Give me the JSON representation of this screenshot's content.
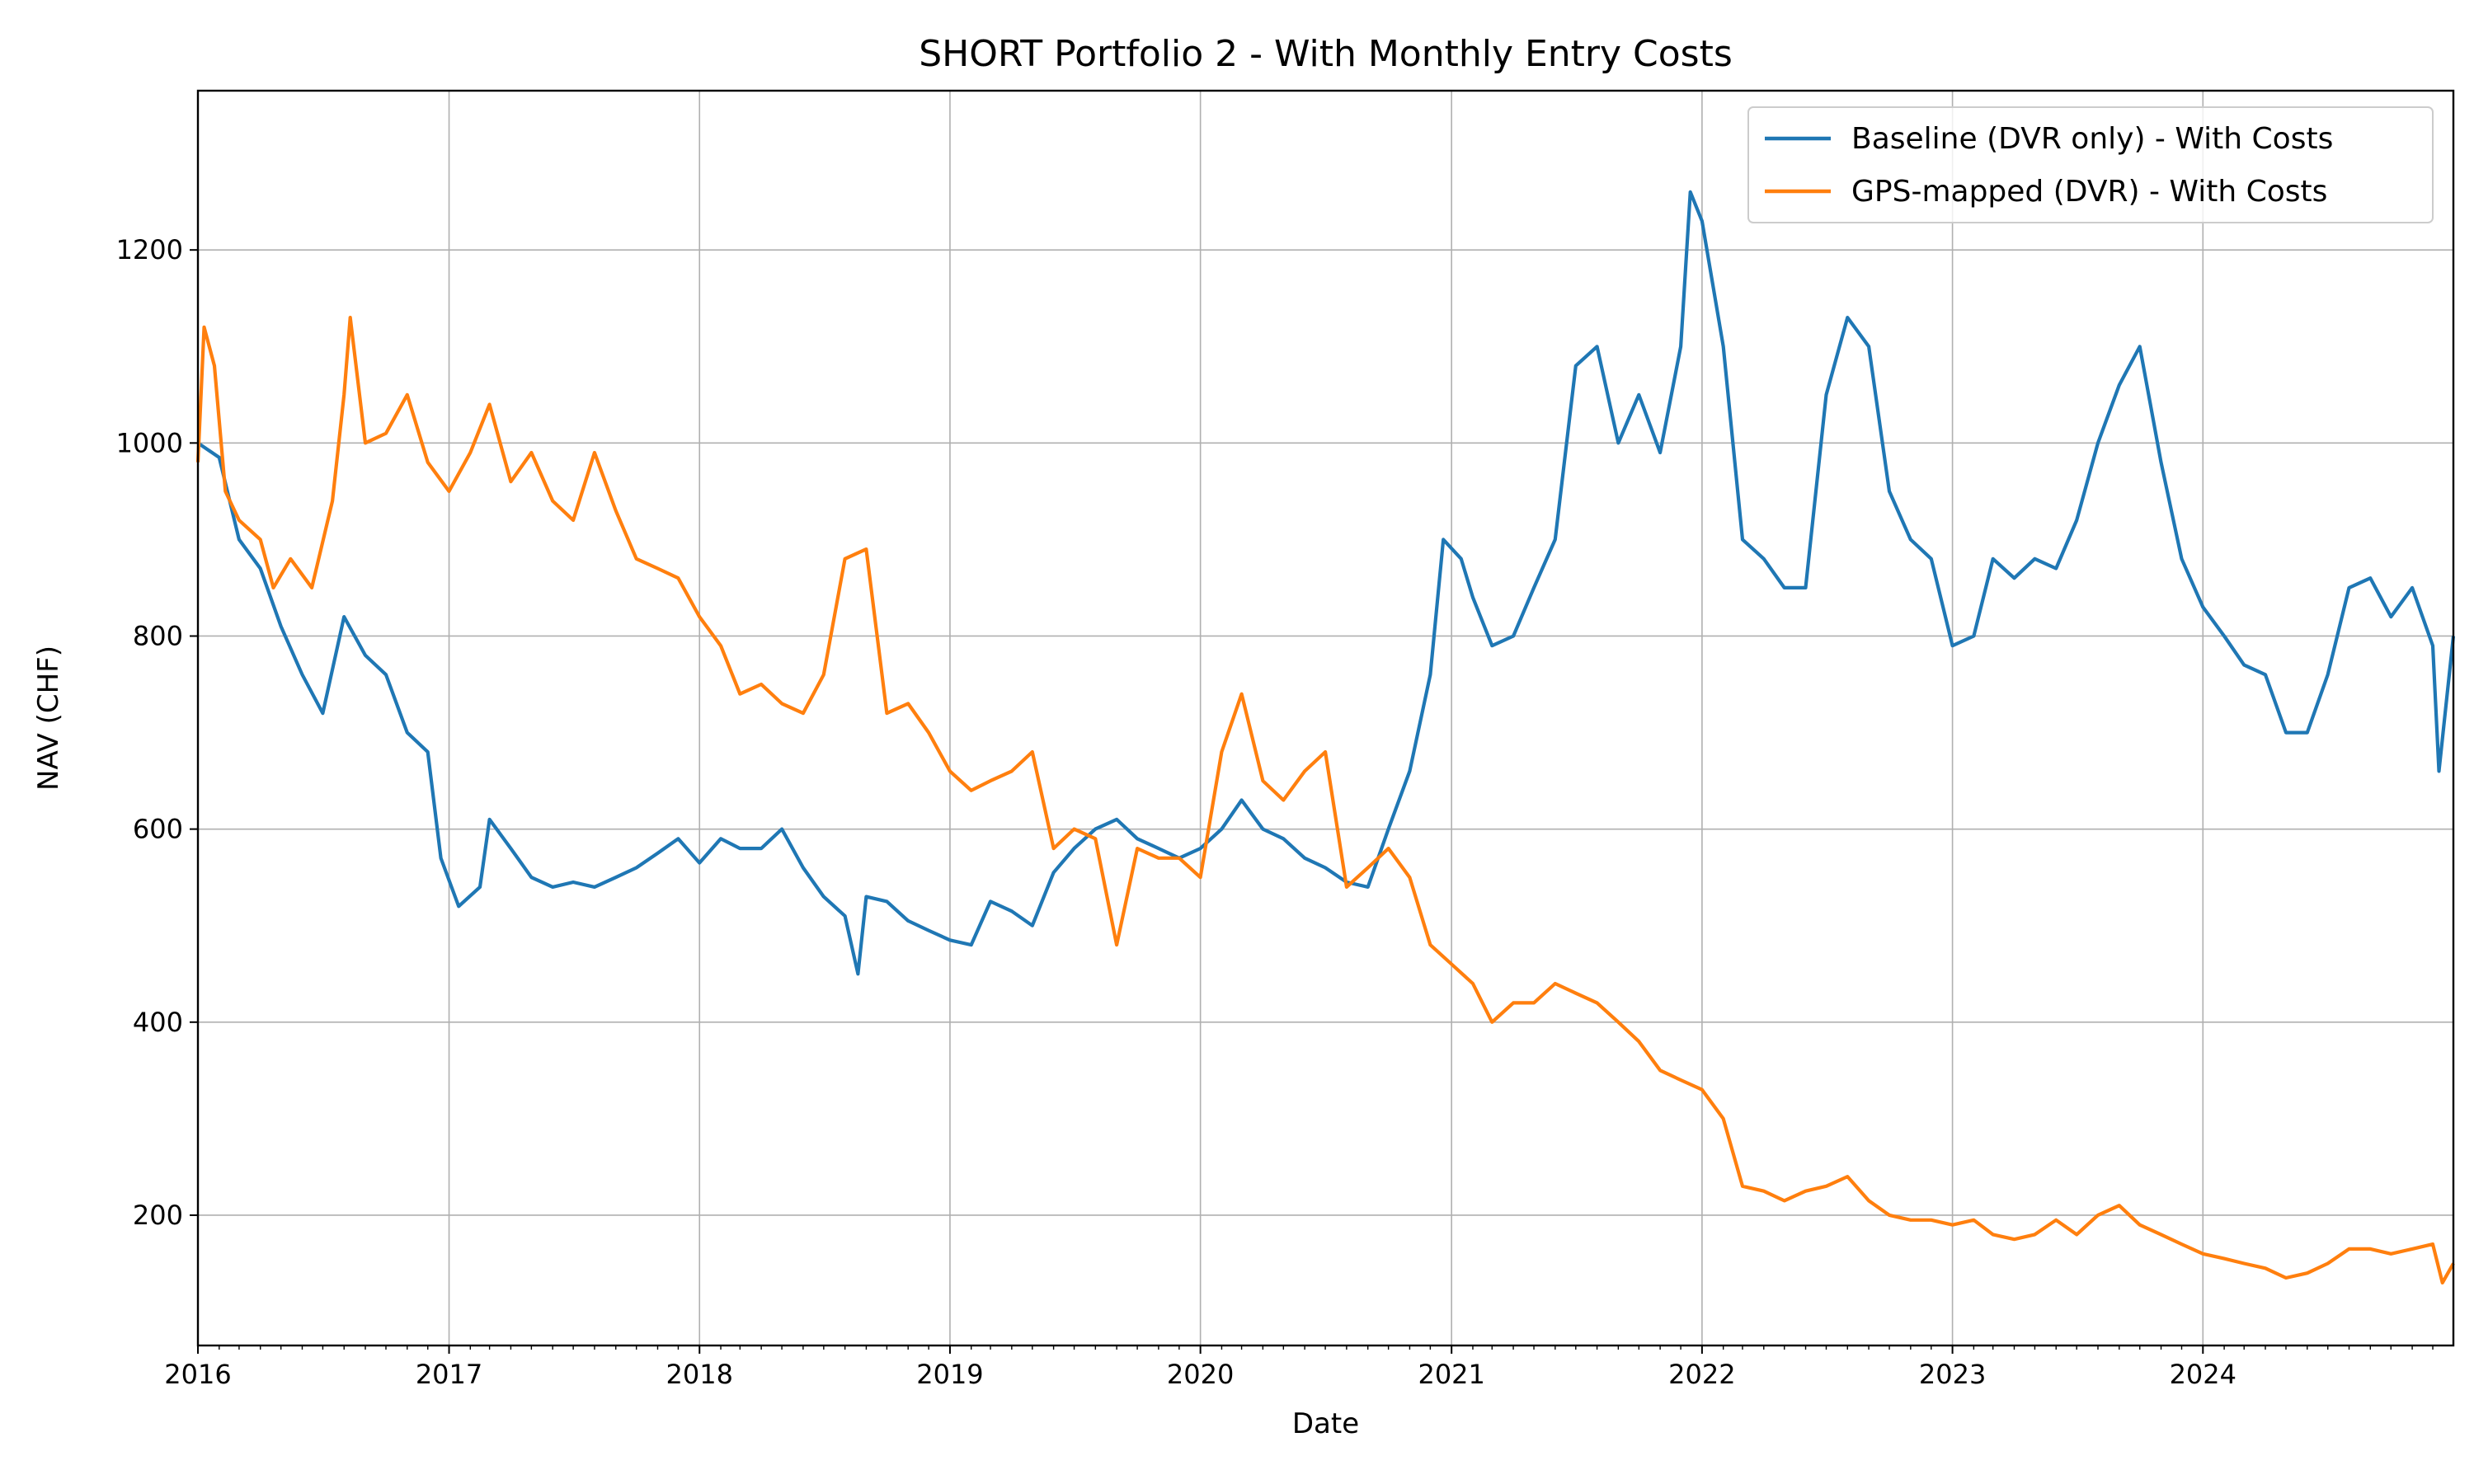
{
  "chart_data": {
    "type": "line",
    "title": "SHORT Portfolio 2 - With Monthly Entry Costs",
    "xlabel": "Date",
    "ylabel": "NAV (CHF)",
    "xlim": [
      "2016-01-01",
      "2024-12-31"
    ],
    "ylim": [
      65,
      1365
    ],
    "x_ticks": [
      "2016",
      "2017",
      "2018",
      "2019",
      "2020",
      "2021",
      "2022",
      "2023",
      "2024"
    ],
    "y_ticks": [
      200,
      400,
      600,
      800,
      1000,
      1200
    ],
    "grid": true,
    "legend_position": "top-right",
    "series": [
      {
        "name": "Baseline (DVR only) - With Costs",
        "color": "#1f77b4",
        "points": [
          [
            "2016-01-01",
            1000
          ],
          [
            "2016-02-01",
            985
          ],
          [
            "2016-03-01",
            900
          ],
          [
            "2016-04-01",
            870
          ],
          [
            "2016-05-01",
            810
          ],
          [
            "2016-06-01",
            760
          ],
          [
            "2016-07-01",
            720
          ],
          [
            "2016-08-01",
            820
          ],
          [
            "2016-09-01",
            780
          ],
          [
            "2016-10-01",
            760
          ],
          [
            "2016-11-01",
            700
          ],
          [
            "2016-12-01",
            680
          ],
          [
            "2016-12-20",
            570
          ],
          [
            "2017-01-15",
            520
          ],
          [
            "2017-02-15",
            540
          ],
          [
            "2017-03-01",
            610
          ],
          [
            "2017-04-01",
            580
          ],
          [
            "2017-05-01",
            550
          ],
          [
            "2017-06-01",
            540
          ],
          [
            "2017-07-01",
            545
          ],
          [
            "2017-08-01",
            540
          ],
          [
            "2017-09-01",
            550
          ],
          [
            "2017-10-01",
            560
          ],
          [
            "2017-11-01",
            575
          ],
          [
            "2017-12-01",
            590
          ],
          [
            "2018-01-01",
            565
          ],
          [
            "2018-02-01",
            590
          ],
          [
            "2018-03-01",
            580
          ],
          [
            "2018-04-01",
            580
          ],
          [
            "2018-05-01",
            600
          ],
          [
            "2018-06-01",
            560
          ],
          [
            "2018-07-01",
            530
          ],
          [
            "2018-08-01",
            510
          ],
          [
            "2018-08-20",
            450
          ],
          [
            "2018-09-01",
            530
          ],
          [
            "2018-10-01",
            525
          ],
          [
            "2018-11-01",
            505
          ],
          [
            "2018-12-01",
            495
          ],
          [
            "2019-01-01",
            485
          ],
          [
            "2019-02-01",
            480
          ],
          [
            "2019-03-01",
            525
          ],
          [
            "2019-04-01",
            515
          ],
          [
            "2019-05-01",
            500
          ],
          [
            "2019-06-01",
            555
          ],
          [
            "2019-07-01",
            580
          ],
          [
            "2019-08-01",
            600
          ],
          [
            "2019-09-01",
            610
          ],
          [
            "2019-10-01",
            590
          ],
          [
            "2019-11-01",
            580
          ],
          [
            "2019-12-01",
            570
          ],
          [
            "2020-01-01",
            580
          ],
          [
            "2020-02-01",
            600
          ],
          [
            "2020-03-01",
            630
          ],
          [
            "2020-04-01",
            600
          ],
          [
            "2020-05-01",
            590
          ],
          [
            "2020-06-01",
            570
          ],
          [
            "2020-07-01",
            560
          ],
          [
            "2020-08-01",
            545
          ],
          [
            "2020-09-01",
            540
          ],
          [
            "2020-10-01",
            600
          ],
          [
            "2020-11-01",
            660
          ],
          [
            "2020-12-01",
            760
          ],
          [
            "2020-12-20",
            900
          ],
          [
            "2021-01-15",
            880
          ],
          [
            "2021-02-01",
            840
          ],
          [
            "2021-03-01",
            790
          ],
          [
            "2021-04-01",
            800
          ],
          [
            "2021-05-01",
            850
          ],
          [
            "2021-06-01",
            900
          ],
          [
            "2021-07-01",
            1080
          ],
          [
            "2021-08-01",
            1100
          ],
          [
            "2021-09-01",
            1000
          ],
          [
            "2021-10-01",
            1050
          ],
          [
            "2021-11-01",
            990
          ],
          [
            "2021-12-01",
            1100
          ],
          [
            "2021-12-15",
            1260
          ],
          [
            "2022-01-01",
            1230
          ],
          [
            "2022-02-01",
            1100
          ],
          [
            "2022-03-01",
            900
          ],
          [
            "2022-04-01",
            880
          ],
          [
            "2022-05-01",
            850
          ],
          [
            "2022-06-01",
            850
          ],
          [
            "2022-07-01",
            1050
          ],
          [
            "2022-08-01",
            1130
          ],
          [
            "2022-09-01",
            1100
          ],
          [
            "2022-10-01",
            950
          ],
          [
            "2022-11-01",
            900
          ],
          [
            "2022-12-01",
            880
          ],
          [
            "2023-01-01",
            790
          ],
          [
            "2023-02-01",
            800
          ],
          [
            "2023-03-01",
            880
          ],
          [
            "2023-04-01",
            860
          ],
          [
            "2023-05-01",
            880
          ],
          [
            "2023-06-01",
            870
          ],
          [
            "2023-07-01",
            920
          ],
          [
            "2023-08-01",
            1000
          ],
          [
            "2023-09-01",
            1060
          ],
          [
            "2023-10-01",
            1100
          ],
          [
            "2023-11-01",
            980
          ],
          [
            "2023-12-01",
            880
          ],
          [
            "2024-01-01",
            830
          ],
          [
            "2024-02-01",
            800
          ],
          [
            "2024-03-01",
            770
          ],
          [
            "2024-04-01",
            760
          ],
          [
            "2024-05-01",
            700
          ],
          [
            "2024-06-01",
            700
          ],
          [
            "2024-07-01",
            760
          ],
          [
            "2024-08-01",
            850
          ],
          [
            "2024-09-01",
            860
          ],
          [
            "2024-10-01",
            820
          ],
          [
            "2024-11-01",
            850
          ],
          [
            "2024-12-01",
            790
          ],
          [
            "2024-12-10",
            660
          ],
          [
            "2024-12-31",
            800
          ]
        ]
      },
      {
        "name": "GPS-mapped (DVR) - With Costs",
        "color": "#ff7f0e",
        "points": [
          [
            "2016-01-01",
            980
          ],
          [
            "2016-01-10",
            1120
          ],
          [
            "2016-01-25",
            1080
          ],
          [
            "2016-02-10",
            950
          ],
          [
            "2016-03-01",
            920
          ],
          [
            "2016-04-01",
            900
          ],
          [
            "2016-04-20",
            850
          ],
          [
            "2016-05-15",
            880
          ],
          [
            "2016-06-15",
            850
          ],
          [
            "2016-07-15",
            940
          ],
          [
            "2016-08-01",
            1050
          ],
          [
            "2016-08-10",
            1130
          ],
          [
            "2016-09-01",
            1000
          ],
          [
            "2016-10-01",
            1010
          ],
          [
            "2016-11-01",
            1050
          ],
          [
            "2016-12-01",
            980
          ],
          [
            "2017-01-01",
            950
          ],
          [
            "2017-02-01",
            990
          ],
          [
            "2017-03-01",
            1040
          ],
          [
            "2017-04-01",
            960
          ],
          [
            "2017-05-01",
            990
          ],
          [
            "2017-06-01",
            940
          ],
          [
            "2017-07-01",
            920
          ],
          [
            "2017-08-01",
            990
          ],
          [
            "2017-09-01",
            930
          ],
          [
            "2017-10-01",
            880
          ],
          [
            "2017-11-01",
            870
          ],
          [
            "2017-12-01",
            860
          ],
          [
            "2018-01-01",
            820
          ],
          [
            "2018-02-01",
            790
          ],
          [
            "2018-03-01",
            740
          ],
          [
            "2018-04-01",
            750
          ],
          [
            "2018-05-01",
            730
          ],
          [
            "2018-06-01",
            720
          ],
          [
            "2018-07-01",
            760
          ],
          [
            "2018-08-01",
            880
          ],
          [
            "2018-09-01",
            890
          ],
          [
            "2018-10-01",
            720
          ],
          [
            "2018-11-01",
            730
          ],
          [
            "2018-12-01",
            700
          ],
          [
            "2019-01-01",
            660
          ],
          [
            "2019-02-01",
            640
          ],
          [
            "2019-03-01",
            650
          ],
          [
            "2019-04-01",
            660
          ],
          [
            "2019-05-01",
            680
          ],
          [
            "2019-06-01",
            580
          ],
          [
            "2019-07-01",
            600
          ],
          [
            "2019-08-01",
            590
          ],
          [
            "2019-09-01",
            480
          ],
          [
            "2019-10-01",
            580
          ],
          [
            "2019-11-01",
            570
          ],
          [
            "2019-12-01",
            570
          ],
          [
            "2020-01-01",
            550
          ],
          [
            "2020-02-01",
            680
          ],
          [
            "2020-03-01",
            740
          ],
          [
            "2020-04-01",
            650
          ],
          [
            "2020-05-01",
            630
          ],
          [
            "2020-06-01",
            660
          ],
          [
            "2020-07-01",
            680
          ],
          [
            "2020-08-01",
            540
          ],
          [
            "2020-09-01",
            560
          ],
          [
            "2020-10-01",
            580
          ],
          [
            "2020-11-01",
            550
          ],
          [
            "2020-12-01",
            480
          ],
          [
            "2021-01-01",
            460
          ],
          [
            "2021-02-01",
            440
          ],
          [
            "2021-03-01",
            400
          ],
          [
            "2021-04-01",
            420
          ],
          [
            "2021-05-01",
            420
          ],
          [
            "2021-06-01",
            440
          ],
          [
            "2021-07-01",
            430
          ],
          [
            "2021-08-01",
            420
          ],
          [
            "2021-09-01",
            400
          ],
          [
            "2021-10-01",
            380
          ],
          [
            "2021-11-01",
            350
          ],
          [
            "2021-12-01",
            340
          ],
          [
            "2022-01-01",
            330
          ],
          [
            "2022-02-01",
            300
          ],
          [
            "2022-03-01",
            230
          ],
          [
            "2022-04-01",
            225
          ],
          [
            "2022-05-01",
            215
          ],
          [
            "2022-06-01",
            225
          ],
          [
            "2022-07-01",
            230
          ],
          [
            "2022-08-01",
            240
          ],
          [
            "2022-09-01",
            215
          ],
          [
            "2022-10-01",
            200
          ],
          [
            "2022-11-01",
            195
          ],
          [
            "2022-12-01",
            195
          ],
          [
            "2023-01-01",
            190
          ],
          [
            "2023-02-01",
            195
          ],
          [
            "2023-03-01",
            180
          ],
          [
            "2023-04-01",
            175
          ],
          [
            "2023-05-01",
            180
          ],
          [
            "2023-06-01",
            195
          ],
          [
            "2023-07-01",
            180
          ],
          [
            "2023-08-01",
            200
          ],
          [
            "2023-09-01",
            210
          ],
          [
            "2023-10-01",
            190
          ],
          [
            "2023-11-01",
            180
          ],
          [
            "2023-12-01",
            170
          ],
          [
            "2024-01-01",
            160
          ],
          [
            "2024-02-01",
            155
          ],
          [
            "2024-03-01",
            150
          ],
          [
            "2024-04-01",
            145
          ],
          [
            "2024-05-01",
            135
          ],
          [
            "2024-06-01",
            140
          ],
          [
            "2024-07-01",
            150
          ],
          [
            "2024-08-01",
            165
          ],
          [
            "2024-09-01",
            165
          ],
          [
            "2024-10-01",
            160
          ],
          [
            "2024-11-01",
            165
          ],
          [
            "2024-12-01",
            170
          ],
          [
            "2024-12-15",
            130
          ],
          [
            "2024-12-31",
            150
          ]
        ]
      }
    ]
  }
}
